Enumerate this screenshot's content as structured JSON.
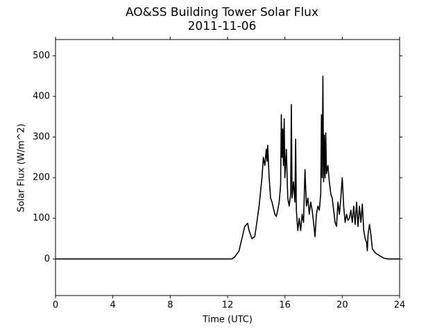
{
  "chart_data": {
    "type": "line",
    "title": "AO&SS Building Tower Solar Flux",
    "subtitle": "2011-11-06",
    "x_label": "Time (UTC)",
    "y_label": "Solar Flux (W/m^2)",
    "xlim": [
      0,
      24
    ],
    "xticks": [
      0,
      4,
      8,
      12,
      16,
      20,
      24
    ],
    "ylim": [
      -90,
      540
    ],
    "yticks": [
      0,
      100,
      200,
      300,
      400,
      500
    ],
    "x": [
      0,
      12.3,
      12.5,
      12.8,
      13.0,
      13.2,
      13.4,
      13.5,
      13.7,
      13.9,
      14.0,
      14.2,
      14.4,
      14.5,
      14.6,
      14.7,
      14.75,
      14.8,
      14.9,
      15.0,
      15.1,
      15.3,
      15.4,
      15.5,
      15.6,
      15.7,
      15.75,
      15.8,
      15.85,
      15.9,
      15.95,
      16.0,
      16.1,
      16.2,
      16.3,
      16.4,
      16.45,
      16.5,
      16.6,
      16.7,
      16.75,
      16.8,
      16.9,
      17.0,
      17.1,
      17.2,
      17.3,
      17.4,
      17.5,
      17.6,
      17.7,
      17.8,
      17.9,
      18.0,
      18.1,
      18.2,
      18.3,
      18.4,
      18.5,
      18.55,
      18.6,
      18.65,
      18.7,
      18.75,
      18.8,
      18.85,
      18.9,
      19.0,
      19.1,
      19.2,
      19.3,
      19.4,
      19.5,
      19.6,
      19.7,
      19.8,
      19.9,
      20.0,
      20.1,
      20.2,
      20.3,
      20.4,
      20.5,
      20.6,
      20.7,
      20.8,
      20.9,
      21.0,
      21.1,
      21.2,
      21.3,
      21.4,
      21.5,
      21.6,
      21.7,
      21.75,
      21.8,
      21.9,
      22.0,
      22.1,
      22.3,
      22.6,
      22.9,
      23.2,
      24
    ],
    "series": [
      {
        "color": "#000000",
        "values": [
          0,
          0,
          5,
          20,
          50,
          80,
          88,
          70,
          50,
          55,
          80,
          130,
          200,
          250,
          230,
          270,
          240,
          280,
          200,
          150,
          140,
          110,
          105,
          120,
          140,
          180,
          355,
          250,
          320,
          230,
          345,
          200,
          270,
          150,
          130,
          160,
          380,
          150,
          190,
          140,
          295,
          120,
          70,
          100,
          70,
          110,
          90,
          220,
          130,
          150,
          110,
          140,
          120,
          90,
          55,
          110,
          130,
          120,
          160,
          355,
          200,
          450,
          190,
          305,
          200,
          310,
          210,
          230,
          190,
          160,
          150,
          120,
          90,
          80,
          140,
          110,
          150,
          200,
          130,
          90,
          110,
          95,
          100,
          120,
          90,
          130,
          85,
          140,
          80,
          130,
          90,
          135,
          70,
          50,
          40,
          20,
          60,
          85,
          60,
          25,
          15,
          8,
          2,
          0,
          0
        ]
      }
    ]
  }
}
